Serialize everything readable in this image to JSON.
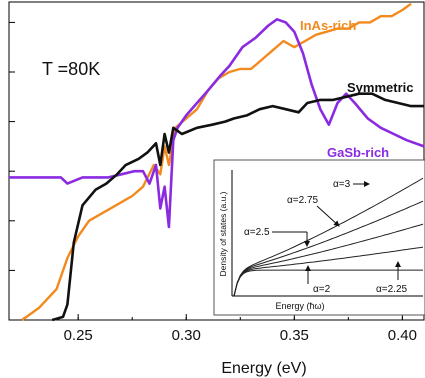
{
  "chart_data": [
    {
      "type": "line",
      "xlabel": "Energy (eV)",
      "ylabel": "",
      "xlim": [
        0.218,
        0.41
      ],
      "ylim": [
        0,
        1.0
      ],
      "x_ticks": [
        "0.25",
        "0.30",
        "0.35",
        "0.40"
      ],
      "annotation": "T =80K",
      "legend": "inline labels",
      "series": [
        {
          "name": "InAs-rich",
          "color": "#f28a1e",
          "points": [
            [
              0.224,
              0.0
            ],
            [
              0.232,
              0.04
            ],
            [
              0.24,
              0.1
            ],
            [
              0.245,
              0.2
            ],
            [
              0.25,
              0.27
            ],
            [
              0.255,
              0.32
            ],
            [
              0.26,
              0.34
            ],
            [
              0.265,
              0.36
            ],
            [
              0.27,
              0.38
            ],
            [
              0.275,
              0.4
            ],
            [
              0.28,
              0.43
            ],
            [
              0.285,
              0.5
            ],
            [
              0.288,
              0.47
            ],
            [
              0.29,
              0.56
            ],
            [
              0.292,
              0.5
            ],
            [
              0.295,
              0.62
            ],
            [
              0.3,
              0.65
            ],
            [
              0.305,
              0.68
            ],
            [
              0.31,
              0.74
            ],
            [
              0.315,
              0.78
            ],
            [
              0.32,
              0.8
            ],
            [
              0.325,
              0.81
            ],
            [
              0.33,
              0.81
            ],
            [
              0.335,
              0.84
            ],
            [
              0.34,
              0.87
            ],
            [
              0.345,
              0.9
            ],
            [
              0.35,
              0.88
            ],
            [
              0.355,
              0.9
            ],
            [
              0.36,
              0.92
            ],
            [
              0.365,
              0.93
            ],
            [
              0.37,
              0.94
            ],
            [
              0.375,
              0.94
            ],
            [
              0.38,
              0.96
            ],
            [
              0.385,
              0.96
            ],
            [
              0.39,
              0.98
            ],
            [
              0.395,
              0.98
            ],
            [
              0.4,
              1.0
            ],
            [
              0.404,
              1.02
            ]
          ]
        },
        {
          "name": "Symmetric",
          "color": "#111111",
          "points": [
            [
              0.238,
              0.0
            ],
            [
              0.243,
              0.01
            ],
            [
              0.245,
              0.05
            ],
            [
              0.248,
              0.25
            ],
            [
              0.252,
              0.37
            ],
            [
              0.258,
              0.42
            ],
            [
              0.263,
              0.44
            ],
            [
              0.268,
              0.47
            ],
            [
              0.272,
              0.5
            ],
            [
              0.278,
              0.52
            ],
            [
              0.282,
              0.54
            ],
            [
              0.286,
              0.57
            ],
            [
              0.288,
              0.5
            ],
            [
              0.29,
              0.6
            ],
            [
              0.292,
              0.54
            ],
            [
              0.294,
              0.62
            ],
            [
              0.298,
              0.6
            ],
            [
              0.305,
              0.62
            ],
            [
              0.312,
              0.63
            ],
            [
              0.318,
              0.64
            ],
            [
              0.322,
              0.65
            ],
            [
              0.328,
              0.66
            ],
            [
              0.334,
              0.68
            ],
            [
              0.34,
              0.69
            ],
            [
              0.346,
              0.68
            ],
            [
              0.352,
              0.67
            ],
            [
              0.356,
              0.7
            ],
            [
              0.362,
              0.71
            ],
            [
              0.368,
              0.71
            ],
            [
              0.374,
              0.72
            ],
            [
              0.38,
              0.73
            ],
            [
              0.386,
              0.73
            ],
            [
              0.392,
              0.71
            ],
            [
              0.398,
              0.7
            ],
            [
              0.404,
              0.69
            ],
            [
              0.41,
              0.69
            ]
          ]
        },
        {
          "name": "GaSb-rich",
          "color": "#8a2be2",
          "points": [
            [
              0.218,
              0.46
            ],
            [
              0.228,
              0.46
            ],
            [
              0.236,
              0.46
            ],
            [
              0.242,
              0.46
            ],
            [
              0.245,
              0.44
            ],
            [
              0.247,
              0.36
            ],
            [
              0.249,
              0.18
            ],
            [
              0.251,
              0.07
            ],
            [
              0.253,
              0.01
            ],
            [
              0.256,
              0.0
            ]
          ]
        }
      ]
    },
    {
      "type": "line",
      "xlabel": "Energy (ħω)",
      "ylabel": "Density of states (a.u.)",
      "series_labels": [
        "α=3",
        "α=2.75",
        "α=2.5",
        "α=2",
        "α=2.25"
      ],
      "series_alpha": [
        3,
        2.75,
        2.5,
        2,
        2.25
      ]
    }
  ]
}
